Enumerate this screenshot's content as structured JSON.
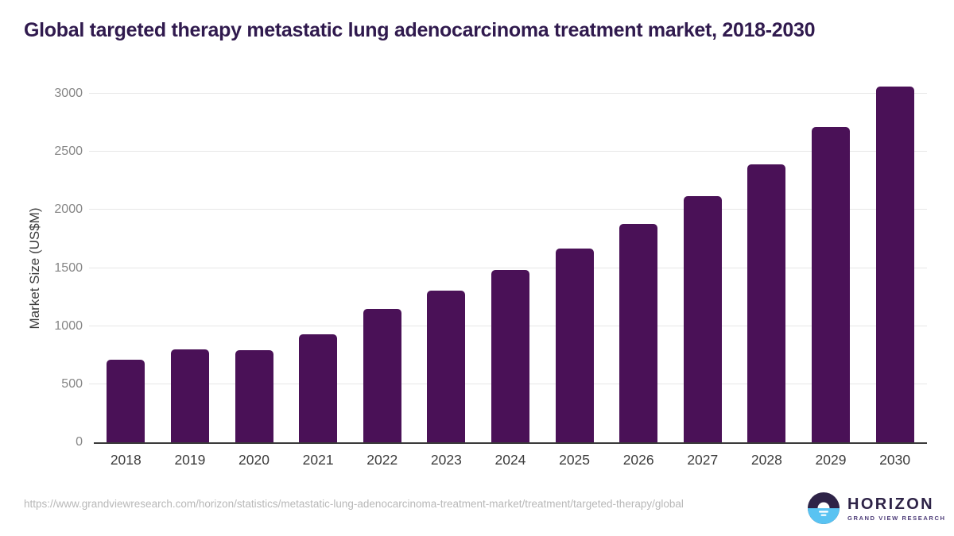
{
  "header": {
    "title": "Global targeted therapy metastatic lung adenocarcinoma treatment market, 2018-2030",
    "title_color": "#301a4e"
  },
  "chart_data": {
    "type": "bar",
    "title": "Global targeted therapy metastatic lung adenocarcinoma treatment market, 2018-2030",
    "categories": [
      "2018",
      "2019",
      "2020",
      "2021",
      "2022",
      "2023",
      "2024",
      "2025",
      "2026",
      "2027",
      "2028",
      "2029",
      "2030"
    ],
    "values": [
      710,
      800,
      793,
      930,
      1150,
      1305,
      1480,
      1665,
      1880,
      2120,
      2395,
      2710,
      3060
    ],
    "xlabel": "",
    "ylabel": "Market Size (US$M)",
    "ylim": [
      0,
      3000
    ],
    "yticks": [
      0,
      500,
      1000,
      1500,
      2000,
      2500,
      3000
    ],
    "grid": true,
    "legend": null,
    "bar_color": "#4a1157",
    "gridline_color": "#e7e7e7",
    "axis_line_color": "#3a3a3a",
    "tick_label_color": "#868686",
    "category_label_color": "#3d3d3d",
    "ylabel_color": "#3d3d3d"
  },
  "footer": {
    "source_url": "https://www.grandviewresearch.com/horizon/statistics/metastatic-lung-adenocarcinoma-treatment-market/treatment/targeted-therapy/global",
    "logo": {
      "brand": "HORIZON",
      "subtitle": "GRAND VIEW RESEARCH",
      "icon": "horizon-sun-icon",
      "brand_color": "#2e2347",
      "subtitle_color": "#4d3c78",
      "icon_dark_color": "#2e2347",
      "icon_blue_color": "#59c3f2"
    }
  }
}
